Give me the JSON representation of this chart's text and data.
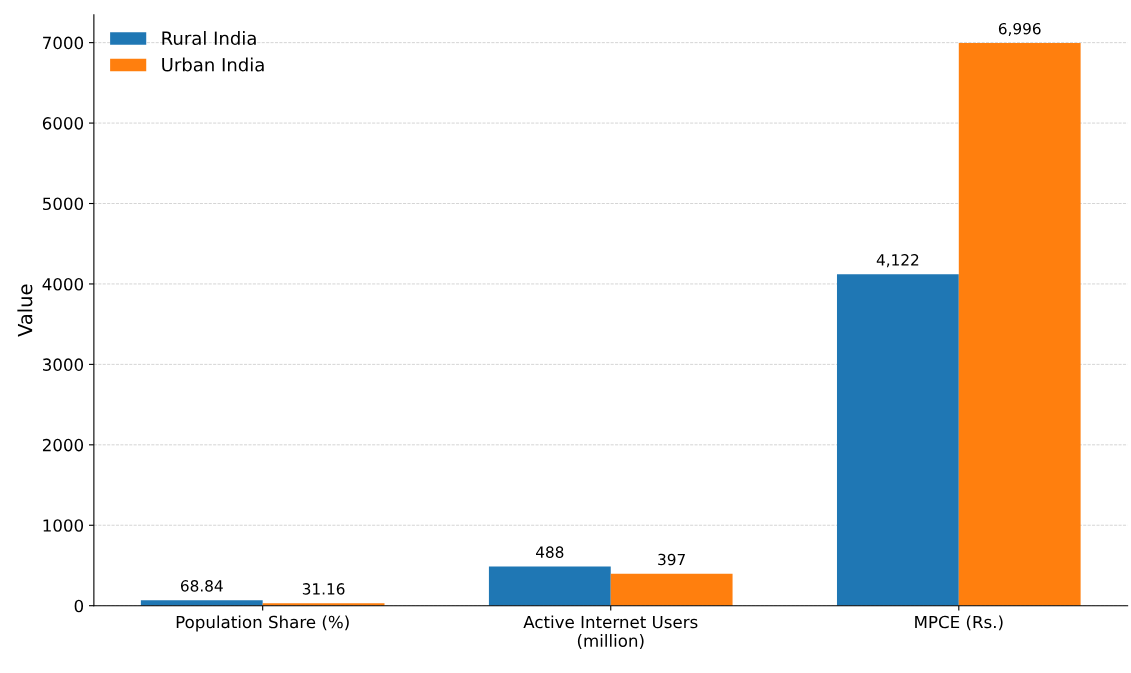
{
  "chart_data": {
    "type": "bar",
    "ylabel": "Value",
    "categories": [
      "Population Share (%)",
      "Active Internet Users\n(million)",
      "MPCE (Rs.)"
    ],
    "series": [
      {
        "name": "Rural India",
        "color": "#1f77b4",
        "values": [
          68.84,
          488,
          4122
        ],
        "value_labels": [
          "68.84",
          "488",
          "4,122"
        ]
      },
      {
        "name": "Urban India",
        "color": "#ff7f0e",
        "values": [
          31.16,
          397,
          6996
        ],
        "value_labels": [
          "31.16",
          "397",
          "6,996"
        ]
      }
    ],
    "ylim": [
      0,
      7346
    ],
    "yticks": [
      0,
      1000,
      2000,
      3000,
      4000,
      5000,
      6000,
      7000
    ],
    "grid": "y",
    "legend": "top left"
  }
}
